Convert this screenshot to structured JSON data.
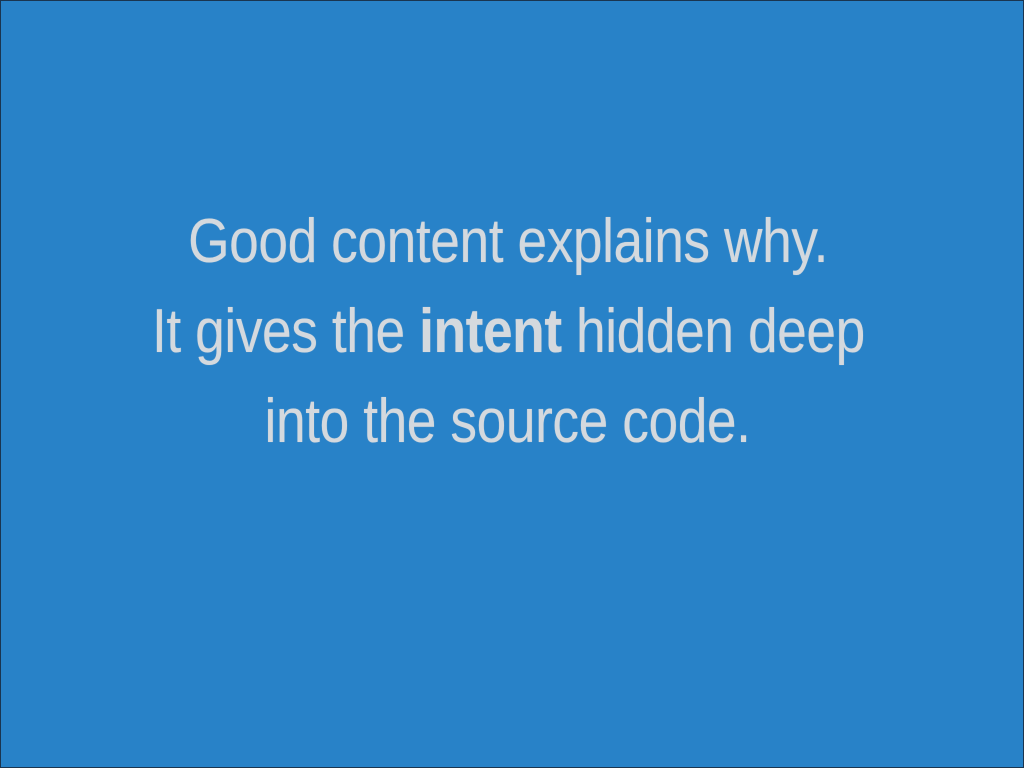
{
  "slide": {
    "background_color": "#2882c8",
    "text_color": "#d4d9de",
    "lines": {
      "line1": "Good content explains why.",
      "line2_before": "It gives the ",
      "line2_emphasis": "intent",
      "line2_after": " hidden deep",
      "line3": "into the source code."
    }
  }
}
